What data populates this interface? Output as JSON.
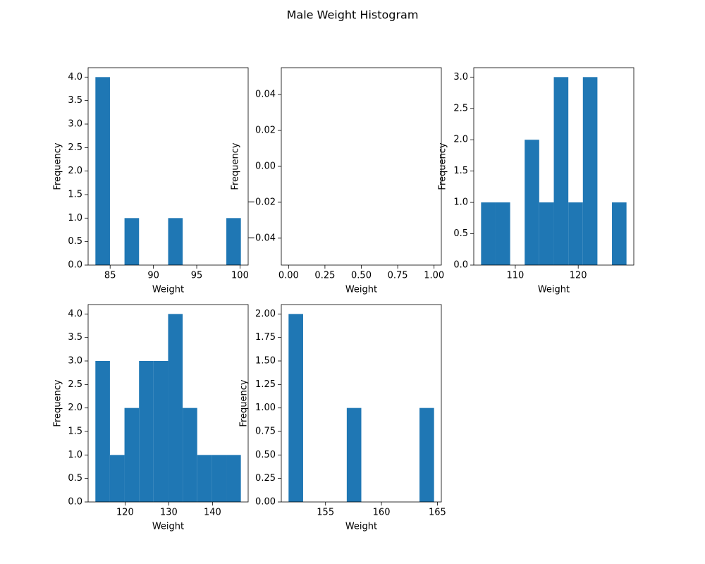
{
  "title": "Male Weight Histogram",
  "chart_data": [
    {
      "type": "histogram",
      "xlabel": "Weight",
      "ylabel": "Frequency",
      "color": "#1f77b4",
      "bins": [
        83.3,
        84.98,
        86.66,
        88.34,
        90.02,
        91.7,
        93.38,
        95.06,
        96.74,
        98.42,
        100.1
      ],
      "values": [
        4,
        0,
        1,
        0,
        0,
        1,
        0,
        0,
        0,
        1
      ],
      "xlim": [
        82.46,
        100.94
      ],
      "xticks": [
        85,
        90,
        95,
        100
      ],
      "ylim": [
        0,
        4.2
      ],
      "yticks": [
        {
          "value": 0,
          "label": "0.0"
        },
        0.5,
        {
          "value": 1,
          "label": "1.0"
        },
        1.5,
        {
          "value": 2,
          "label": "2.0"
        },
        2.5,
        {
          "value": 3,
          "label": "3.0"
        },
        3.5,
        {
          "value": 4,
          "label": "4.0"
        }
      ]
    },
    {
      "type": "histogram",
      "xlabel": "Weight",
      "ylabel": "Frequency",
      "color": "#1f77b4",
      "xlim": [
        -0.05,
        1.05
      ],
      "xticks": [
        {
          "value": 0,
          "label": "0.00"
        },
        0.25,
        {
          "value": 0.5,
          "label": "0.50"
        },
        0.75,
        {
          "value": 1,
          "label": "1.00"
        }
      ],
      "ylim": [
        -0.055,
        0.055
      ],
      "yticks": [
        {
          "value": -0.04,
          "label": "−0.04"
        },
        {
          "value": -0.02,
          "label": "−0.02"
        },
        {
          "value": 0,
          "label": "0.00"
        },
        0.02,
        0.04
      ]
    },
    {
      "type": "histogram",
      "xlabel": "Weight",
      "ylabel": "Frequency",
      "color": "#1f77b4",
      "bins": [
        104.56,
        106.87,
        109.18,
        111.49,
        113.8,
        116.12,
        118.43,
        120.74,
        123.05,
        125.36,
        127.67
      ],
      "values": [
        1,
        1,
        0,
        2,
        1,
        3,
        1,
        3,
        0,
        1
      ],
      "xlim": [
        103.4,
        128.83
      ],
      "xticks": [
        110,
        120
      ],
      "ylim": [
        0,
        3.15
      ],
      "yticks": [
        {
          "value": 0,
          "label": "0.0"
        },
        0.5,
        {
          "value": 1,
          "label": "1.0"
        },
        1.5,
        {
          "value": 2,
          "label": "2.0"
        },
        2.5,
        {
          "value": 3,
          "label": "3.0"
        }
      ]
    },
    {
      "type": "histogram",
      "xlabel": "Weight",
      "ylabel": "Frequency",
      "color": "#1f77b4",
      "bins": [
        113.2,
        116.53,
        119.86,
        123.19,
        126.52,
        129.85,
        133.18,
        136.51,
        139.84,
        143.17,
        146.5
      ],
      "values": [
        3,
        1,
        2,
        3,
        3,
        4,
        2,
        1,
        1,
        1
      ],
      "xlim": [
        111.54,
        148.17
      ],
      "xticks": [
        120,
        130,
        140
      ],
      "ylim": [
        0,
        4.2
      ],
      "yticks": [
        {
          "value": 0,
          "label": "0.0"
        },
        0.5,
        {
          "value": 1,
          "label": "1.0"
        },
        1.5,
        {
          "value": 2,
          "label": "2.0"
        },
        2.5,
        {
          "value": 3,
          "label": "3.0"
        },
        3.5,
        {
          "value": 4,
          "label": "4.0"
        }
      ]
    },
    {
      "type": "histogram",
      "xlabel": "Weight",
      "ylabel": "Frequency",
      "color": "#1f77b4",
      "bins": [
        151.7,
        153.0,
        154.3,
        155.6,
        156.9,
        158.2,
        159.5,
        160.8,
        162.1,
        163.4,
        164.7
      ],
      "values": [
        2,
        0,
        0,
        0,
        1,
        0,
        0,
        0,
        0,
        1
      ],
      "xlim": [
        151.05,
        165.35
      ],
      "xticks": [
        155,
        160,
        165
      ],
      "ylim": [
        0,
        2.1
      ],
      "yticks": [
        {
          "value": 0,
          "label": "0.00"
        },
        0.25,
        {
          "value": 0.5,
          "label": "0.50"
        },
        0.75,
        {
          "value": 1,
          "label": "1.00"
        },
        1.25,
        {
          "value": 1.5,
          "label": "1.50"
        },
        1.75,
        {
          "value": 2,
          "label": "2.00"
        }
      ]
    }
  ]
}
